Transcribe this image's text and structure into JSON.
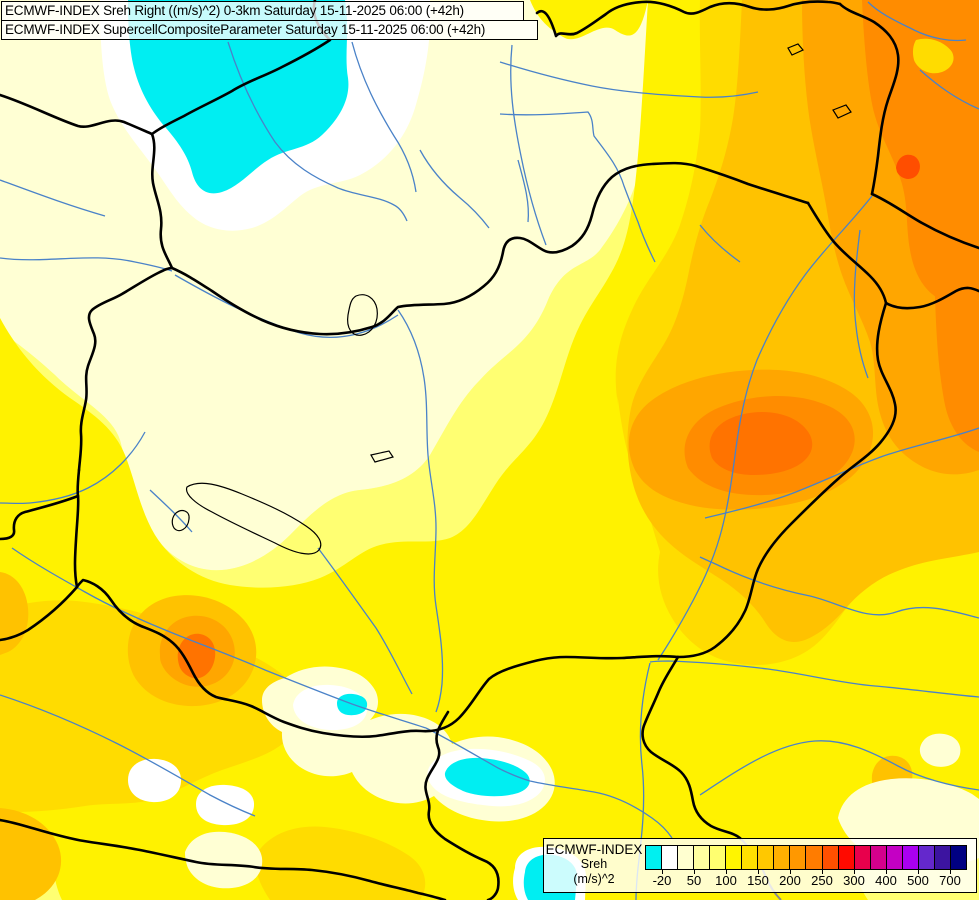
{
  "titles": {
    "line1": "ECMWF-INDEX Sreh Right ((m/s)^2) 0-3km Saturday 15-11-2025 06:00 (+42h)",
    "line2": "ECMWF-INDEX SupercellCompositeParameter Saturday 15-11-2025 06:00 (+42h)"
  },
  "legend": {
    "label_line1": "ECMWF-INDEX",
    "label_line2": "Sreh",
    "label_line3": "(m/s)^2",
    "swatches": [
      "#00F0F0",
      "#FFFFFF",
      "#FFFFD0",
      "#FFFFA0",
      "#FFFF70",
      "#FFF500",
      "#FFE000",
      "#FFC800",
      "#FFB000",
      "#FF9800",
      "#FF7C00",
      "#FF5000",
      "#FF0A00",
      "#E8004C",
      "#D4008C",
      "#C400C4",
      "#AA00F0",
      "#6428CC",
      "#3C14A0",
      "#000082"
    ],
    "ticks": [
      {
        "after_swatch": 1,
        "label": "-20"
      },
      {
        "after_swatch": 3,
        "label": "50"
      },
      {
        "after_swatch": 5,
        "label": "100"
      },
      {
        "after_swatch": 7,
        "label": "150"
      },
      {
        "after_swatch": 9,
        "label": "200"
      },
      {
        "after_swatch": 11,
        "label": "250"
      },
      {
        "after_swatch": 13,
        "label": "300"
      },
      {
        "after_swatch": 15,
        "label": "400"
      },
      {
        "after_swatch": 17,
        "label": "500"
      },
      {
        "after_swatch": 19,
        "label": "700"
      }
    ]
  },
  "map": {
    "colors": {
      "pale": "#FFFFA8",
      "cream": "#FFFFD4",
      "yellow1": "#FFFF72",
      "yellow2": "#FFF200",
      "gold": "#FFDC00",
      "amber": "#FFC200",
      "orange1": "#FFA600",
      "orange2": "#FF8C00",
      "orange3": "#FF7300",
      "red1": "#FF4E00",
      "white": "#FFFFFF",
      "cyan": "#00EEF2",
      "river": "#4A82C8",
      "outline": "#000000",
      "gray": "#8A8A8A"
    }
  }
}
